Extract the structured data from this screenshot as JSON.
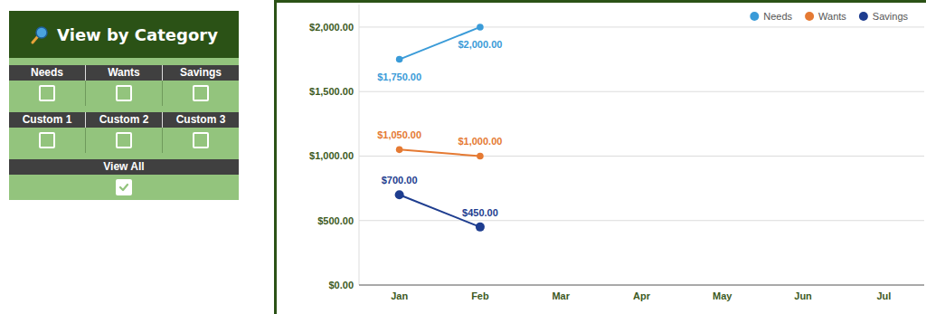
{
  "chart_data": {
    "type": "line",
    "categories": [
      "Jan",
      "Feb",
      "Mar",
      "Apr",
      "May",
      "Jun",
      "Jul"
    ],
    "series": [
      {
        "name": "Needs",
        "color": "#3a9bd8",
        "marker": "circle",
        "values": [
          1750,
          2000,
          null,
          null,
          null,
          null,
          null
        ],
        "value_labels": [
          "$1,750.00",
          "$2,000.00",
          null,
          null,
          null,
          null,
          null
        ]
      },
      {
        "name": "Wants",
        "color": "#e57a33",
        "marker": "circle",
        "values": [
          1050,
          1000,
          null,
          null,
          null,
          null,
          null
        ],
        "value_labels": [
          "$1,050.00",
          "$1,000.00",
          null,
          null,
          null,
          null,
          null
        ]
      },
      {
        "name": "Savings",
        "color": "#1e3d8f",
        "marker": "circle",
        "values": [
          700,
          450,
          null,
          null,
          null,
          null,
          null
        ],
        "value_labels": [
          "$700.00",
          "$450.00",
          null,
          null,
          null,
          null,
          null
        ]
      }
    ],
    "ylim": [
      0,
      2175
    ],
    "yticks": [
      {
        "value": 0,
        "label": "$0.00"
      },
      {
        "value": 500,
        "label": "$500.00"
      },
      {
        "value": 1000,
        "label": "$1,000.00"
      },
      {
        "value": 1500,
        "label": "$1,500.00"
      },
      {
        "value": 2000,
        "label": "$2,000.00"
      }
    ],
    "grid": true,
    "legend": "top-right",
    "data_labels": true
  },
  "panel": {
    "title": "View by Category",
    "groups": [
      {
        "items": [
          {
            "label": "Needs",
            "checked": false
          },
          {
            "label": "Wants",
            "checked": false
          },
          {
            "label": "Savings",
            "checked": false
          }
        ]
      },
      {
        "items": [
          {
            "label": "Custom 1",
            "checked": false
          },
          {
            "label": "Custom 2",
            "checked": false
          },
          {
            "label": "Custom 3",
            "checked": false
          }
        ]
      },
      {
        "items": [
          {
            "label": "View All",
            "checked": true
          }
        ]
      }
    ]
  }
}
